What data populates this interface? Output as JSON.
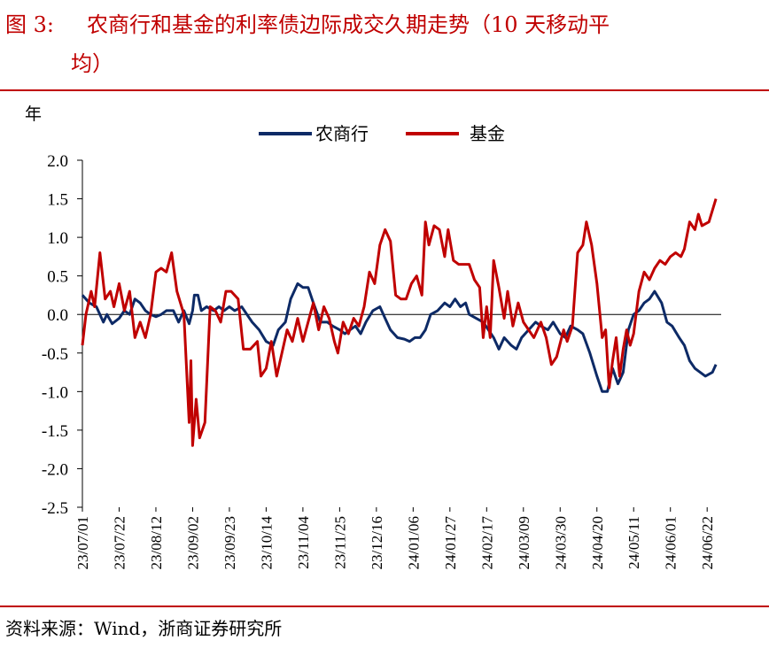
{
  "figure": {
    "label": "图 3:",
    "title_line1": "农商行和基金的利率债边际成交久期走势（10 天移动平",
    "title_line2": "均）",
    "source": "资料来源：Wind，浙商证券研究所"
  },
  "colors": {
    "title": "#c00000",
    "nongshang": "#0d2a66",
    "fund": "#c00000"
  },
  "chart_data": {
    "type": "line",
    "ylabel": "年",
    "ylim": [
      -2.5,
      2.0
    ],
    "yticks": [
      "2.0",
      "1.5",
      "1.0",
      "0.5",
      "0.0",
      "-0.5",
      "-1.0",
      "-1.5",
      "-2.0",
      "-2.5"
    ],
    "xlim": [
      "2023-07-01",
      "2024-06-30"
    ],
    "xtick_labels": [
      "23/07/01",
      "23/07/22",
      "23/08/12",
      "23/09/02",
      "23/09/23",
      "23/10/14",
      "23/11/04",
      "23/11/25",
      "23/12/16",
      "24/01/06",
      "24/01/27",
      "24/02/17",
      "24/03/09",
      "24/03/30",
      "24/04/20",
      "24/05/11",
      "24/06/01",
      "24/06/22"
    ],
    "legend": "top-center",
    "grid": false,
    "series": [
      {
        "name": "农商行",
        "color": "#0d2a66",
        "points": [
          [
            "2023-07-01",
            0.25
          ],
          [
            "2023-07-05",
            0.15
          ],
          [
            "2023-07-09",
            0.1
          ],
          [
            "2023-07-13",
            -0.1
          ],
          [
            "2023-07-15",
            0.0
          ],
          [
            "2023-07-18",
            -0.12
          ],
          [
            "2023-07-22",
            -0.05
          ],
          [
            "2023-07-25",
            0.05
          ],
          [
            "2023-07-28",
            0.0
          ],
          [
            "2023-07-31",
            0.2
          ],
          [
            "2023-08-03",
            0.15
          ],
          [
            "2023-08-06",
            0.05
          ],
          [
            "2023-08-09",
            0.0
          ],
          [
            "2023-08-12",
            -0.03
          ],
          [
            "2023-08-15",
            0.0
          ],
          [
            "2023-08-18",
            0.05
          ],
          [
            "2023-08-22",
            0.05
          ],
          [
            "2023-08-25",
            -0.1
          ],
          [
            "2023-08-28",
            0.05
          ],
          [
            "2023-08-31",
            -0.12
          ],
          [
            "2023-09-02",
            0.05
          ],
          [
            "2023-09-03",
            0.25
          ],
          [
            "2023-09-05",
            0.25
          ],
          [
            "2023-09-07",
            0.05
          ],
          [
            "2023-09-10",
            0.1
          ],
          [
            "2023-09-14",
            0.05
          ],
          [
            "2023-09-17",
            0.1
          ],
          [
            "2023-09-20",
            0.05
          ],
          [
            "2023-09-23",
            0.1
          ],
          [
            "2023-09-26",
            0.05
          ],
          [
            "2023-09-30",
            0.1
          ],
          [
            "2023-10-03",
            0.0
          ],
          [
            "2023-10-06",
            -0.1
          ],
          [
            "2023-10-10",
            -0.2
          ],
          [
            "2023-10-14",
            -0.35
          ],
          [
            "2023-10-18",
            -0.4
          ],
          [
            "2023-10-21",
            -0.2
          ],
          [
            "2023-10-25",
            -0.1
          ],
          [
            "2023-10-28",
            0.2
          ],
          [
            "2023-11-01",
            0.4
          ],
          [
            "2023-11-04",
            0.35
          ],
          [
            "2023-11-07",
            0.35
          ],
          [
            "2023-11-10",
            0.15
          ],
          [
            "2023-11-14",
            -0.1
          ],
          [
            "2023-11-18",
            -0.1
          ],
          [
            "2023-11-21",
            -0.15
          ],
          [
            "2023-11-25",
            -0.2
          ],
          [
            "2023-11-28",
            -0.25
          ],
          [
            "2023-12-01",
            -0.2
          ],
          [
            "2023-12-04",
            -0.15
          ],
          [
            "2023-12-07",
            -0.25
          ],
          [
            "2023-12-10",
            -0.1
          ],
          [
            "2023-12-14",
            0.05
          ],
          [
            "2023-12-18",
            0.1
          ],
          [
            "2023-12-21",
            -0.05
          ],
          [
            "2023-12-24",
            -0.2
          ],
          [
            "2023-12-28",
            -0.3
          ],
          [
            "2024-01-01",
            -0.32
          ],
          [
            "2024-01-04",
            -0.35
          ],
          [
            "2024-01-07",
            -0.3
          ],
          [
            "2024-01-10",
            -0.3
          ],
          [
            "2024-01-13",
            -0.2
          ],
          [
            "2024-01-16",
            0.0
          ],
          [
            "2024-01-20",
            0.05
          ],
          [
            "2024-01-24",
            0.15
          ],
          [
            "2024-01-27",
            0.1
          ],
          [
            "2024-01-30",
            0.2
          ],
          [
            "2024-02-02",
            0.1
          ],
          [
            "2024-02-05",
            0.15
          ],
          [
            "2024-02-07",
            0.0
          ],
          [
            "2024-02-11",
            -0.05
          ],
          [
            "2024-02-15",
            -0.1
          ],
          [
            "2024-02-18",
            -0.2
          ],
          [
            "2024-02-21",
            -0.3
          ],
          [
            "2024-02-24",
            -0.45
          ],
          [
            "2024-02-27",
            -0.3
          ],
          [
            "2024-03-02",
            -0.4
          ],
          [
            "2024-03-05",
            -0.45
          ],
          [
            "2024-03-08",
            -0.3
          ],
          [
            "2024-03-12",
            -0.2
          ],
          [
            "2024-03-16",
            -0.1
          ],
          [
            "2024-03-19",
            -0.15
          ],
          [
            "2024-03-23",
            -0.2
          ],
          [
            "2024-03-26",
            -0.1
          ],
          [
            "2024-03-30",
            -0.25
          ],
          [
            "2024-04-02",
            -0.3
          ],
          [
            "2024-04-05",
            -0.15
          ],
          [
            "2024-04-09",
            -0.2
          ],
          [
            "2024-04-12",
            -0.25
          ],
          [
            "2024-04-16",
            -0.5
          ],
          [
            "2024-04-20",
            -0.8
          ],
          [
            "2024-04-23",
            -1.0
          ],
          [
            "2024-04-26",
            -1.0
          ],
          [
            "2024-04-29",
            -0.7
          ],
          [
            "2024-05-02",
            -0.9
          ],
          [
            "2024-05-05",
            -0.75
          ],
          [
            "2024-05-08",
            -0.2
          ],
          [
            "2024-05-11",
            0.0
          ],
          [
            "2024-05-14",
            0.05
          ],
          [
            "2024-05-17",
            0.15
          ],
          [
            "2024-05-20",
            0.2
          ],
          [
            "2024-05-23",
            0.3
          ],
          [
            "2024-05-27",
            0.15
          ],
          [
            "2024-05-30",
            -0.1
          ],
          [
            "2024-06-02",
            -0.15
          ],
          [
            "2024-06-06",
            -0.3
          ],
          [
            "2024-06-09",
            -0.4
          ],
          [
            "2024-06-12",
            -0.6
          ],
          [
            "2024-06-15",
            -0.7
          ],
          [
            "2024-06-18",
            -0.75
          ],
          [
            "2024-06-21",
            -0.8
          ],
          [
            "2024-06-25",
            -0.75
          ],
          [
            "2024-06-27",
            -0.65
          ]
        ]
      },
      {
        "name": "基金",
        "color": "#c00000",
        "points": [
          [
            "2023-07-01",
            -0.4
          ],
          [
            "2023-07-03",
            0.0
          ],
          [
            "2023-07-06",
            0.3
          ],
          [
            "2023-07-08",
            0.1
          ],
          [
            "2023-07-11",
            0.8
          ],
          [
            "2023-07-14",
            0.2
          ],
          [
            "2023-07-17",
            0.3
          ],
          [
            "2023-07-19",
            0.1
          ],
          [
            "2023-07-22",
            0.4
          ],
          [
            "2023-07-25",
            0.05
          ],
          [
            "2023-07-28",
            0.3
          ],
          [
            "2023-07-31",
            -0.3
          ],
          [
            "2023-08-03",
            -0.1
          ],
          [
            "2023-08-06",
            -0.3
          ],
          [
            "2023-08-09",
            0.0
          ],
          [
            "2023-08-12",
            0.55
          ],
          [
            "2023-08-15",
            0.6
          ],
          [
            "2023-08-18",
            0.55
          ],
          [
            "2023-08-21",
            0.8
          ],
          [
            "2023-08-24",
            0.3
          ],
          [
            "2023-08-28",
            0.0
          ],
          [
            "2023-08-31",
            -1.4
          ],
          [
            "2023-09-01",
            -0.6
          ],
          [
            "2023-09-02",
            -1.7
          ],
          [
            "2023-09-04",
            -1.1
          ],
          [
            "2023-09-06",
            -1.6
          ],
          [
            "2023-09-09",
            -1.4
          ],
          [
            "2023-09-12",
            0.1
          ],
          [
            "2023-09-15",
            0.05
          ],
          [
            "2023-09-18",
            -0.1
          ],
          [
            "2023-09-21",
            0.3
          ],
          [
            "2023-09-24",
            0.3
          ],
          [
            "2023-09-28",
            0.2
          ],
          [
            "2023-10-01",
            -0.45
          ],
          [
            "2023-10-05",
            -0.45
          ],
          [
            "2023-10-09",
            -0.35
          ],
          [
            "2023-10-11",
            -0.8
          ],
          [
            "2023-10-14",
            -0.7
          ],
          [
            "2023-10-17",
            -0.35
          ],
          [
            "2023-10-20",
            -0.8
          ],
          [
            "2023-10-23",
            -0.5
          ],
          [
            "2023-10-26",
            -0.2
          ],
          [
            "2023-10-29",
            -0.35
          ],
          [
            "2023-11-01",
            -0.05
          ],
          [
            "2023-11-04",
            -0.35
          ],
          [
            "2023-11-07",
            -0.1
          ],
          [
            "2023-11-10",
            0.15
          ],
          [
            "2023-11-13",
            -0.2
          ],
          [
            "2023-11-16",
            0.1
          ],
          [
            "2023-11-19",
            -0.05
          ],
          [
            "2023-11-22",
            -0.35
          ],
          [
            "2023-11-24",
            -0.5
          ],
          [
            "2023-11-27",
            -0.1
          ],
          [
            "2023-11-30",
            -0.25
          ],
          [
            "2023-12-03",
            -0.05
          ],
          [
            "2023-12-06",
            -0.15
          ],
          [
            "2023-12-09",
            0.1
          ],
          [
            "2023-12-12",
            0.55
          ],
          [
            "2023-12-15",
            0.4
          ],
          [
            "2023-12-18",
            0.9
          ],
          [
            "2023-12-21",
            1.1
          ],
          [
            "2023-12-24",
            0.95
          ],
          [
            "2023-12-27",
            0.25
          ],
          [
            "2023-12-30",
            0.2
          ],
          [
            "2024-01-02",
            0.2
          ],
          [
            "2024-01-05",
            0.4
          ],
          [
            "2024-01-08",
            0.5
          ],
          [
            "2024-01-11",
            0.25
          ],
          [
            "2024-01-13",
            1.2
          ],
          [
            "2024-01-15",
            0.9
          ],
          [
            "2024-01-18",
            1.15
          ],
          [
            "2024-01-21",
            1.1
          ],
          [
            "2024-01-24",
            0.75
          ],
          [
            "2024-01-26",
            1.1
          ],
          [
            "2024-01-29",
            0.7
          ],
          [
            "2024-02-01",
            0.65
          ],
          [
            "2024-02-04",
            0.65
          ],
          [
            "2024-02-07",
            0.65
          ],
          [
            "2024-02-10",
            0.45
          ],
          [
            "2024-02-13",
            0.35
          ],
          [
            "2024-02-15",
            -0.3
          ],
          [
            "2024-02-17",
            0.1
          ],
          [
            "2024-02-19",
            -0.3
          ],
          [
            "2024-02-21",
            0.7
          ],
          [
            "2024-02-24",
            0.35
          ],
          [
            "2024-02-27",
            -0.05
          ],
          [
            "2024-02-29",
            0.3
          ],
          [
            "2024-03-03",
            -0.15
          ],
          [
            "2024-03-06",
            0.15
          ],
          [
            "2024-03-09",
            -0.1
          ],
          [
            "2024-03-12",
            -0.2
          ],
          [
            "2024-03-15",
            -0.3
          ],
          [
            "2024-03-19",
            -0.1
          ],
          [
            "2024-03-22",
            -0.3
          ],
          [
            "2024-03-25",
            -0.65
          ],
          [
            "2024-03-28",
            -0.55
          ],
          [
            "2024-04-01",
            -0.2
          ],
          [
            "2024-04-03",
            -0.35
          ],
          [
            "2024-04-06",
            -0.15
          ],
          [
            "2024-04-09",
            0.8
          ],
          [
            "2024-04-12",
            0.9
          ],
          [
            "2024-04-14",
            1.2
          ],
          [
            "2024-04-17",
            0.9
          ],
          [
            "2024-04-20",
            0.4
          ],
          [
            "2024-04-23",
            -0.3
          ],
          [
            "2024-04-25",
            -0.2
          ],
          [
            "2024-04-27",
            -0.95
          ],
          [
            "2024-04-29",
            -0.6
          ],
          [
            "2024-05-01",
            -0.3
          ],
          [
            "2024-05-03",
            -0.8
          ],
          [
            "2024-05-05",
            -0.45
          ],
          [
            "2024-05-07",
            -0.2
          ],
          [
            "2024-05-09",
            -0.4
          ],
          [
            "2024-05-11",
            -0.25
          ],
          [
            "2024-05-14",
            0.3
          ],
          [
            "2024-05-17",
            0.55
          ],
          [
            "2024-05-20",
            0.45
          ],
          [
            "2024-05-23",
            0.6
          ],
          [
            "2024-05-26",
            0.7
          ],
          [
            "2024-05-29",
            0.65
          ],
          [
            "2024-06-01",
            0.75
          ],
          [
            "2024-06-04",
            0.8
          ],
          [
            "2024-06-07",
            0.75
          ],
          [
            "2024-06-09",
            0.85
          ],
          [
            "2024-06-12",
            1.2
          ],
          [
            "2024-06-15",
            1.1
          ],
          [
            "2024-06-17",
            1.3
          ],
          [
            "2024-06-19",
            1.15
          ],
          [
            "2024-06-23",
            1.2
          ],
          [
            "2024-06-27",
            1.5
          ]
        ]
      }
    ]
  }
}
